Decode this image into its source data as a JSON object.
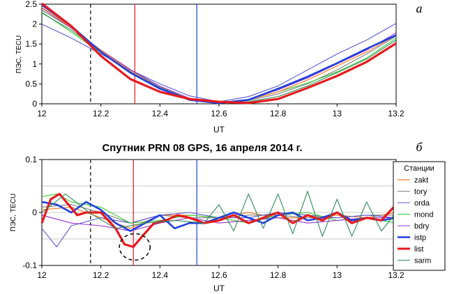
{
  "title": "Спутник PRN 08 GPS, 16 апреля 2014 г.",
  "colors": {
    "zakt": "#ff7f27",
    "tory": "#808080",
    "orda": "#5b5bd6",
    "mond": "#33cc33",
    "bdry": "#9933cc",
    "istp": "#1f3fe0",
    "list": "#e8191c",
    "sarm": "#2e8b57"
  },
  "chart_data": [
    {
      "type": "line",
      "panel_label": "а",
      "xlabel": "UT",
      "ylabel": "ПЭС, TECU",
      "xlim": [
        12,
        13.2
      ],
      "ylim": [
        0,
        2.5
      ],
      "xticks": [
        "12",
        "12.2",
        "12.4",
        "12.6",
        "12.8",
        "13",
        "13.2"
      ],
      "yticks": [
        "0",
        "0.5",
        "1",
        "1.5",
        "2",
        "2.5"
      ],
      "markers": [
        {
          "x": 12.165,
          "style": "dashed",
          "color": "#000000"
        },
        {
          "x": 12.315,
          "style": "solid",
          "color": "#e8191c"
        },
        {
          "x": 12.525,
          "style": "solid",
          "color": "#1f3fe0"
        }
      ],
      "series": [
        {
          "name": "tory",
          "x": [
            12,
            12.1,
            12.2,
            12.3,
            12.4,
            12.5,
            12.6,
            12.7,
            12.8,
            12.9,
            13,
            13.1,
            13.2
          ],
          "values": [
            2.35,
            1.9,
            1.35,
            0.85,
            0.42,
            0.12,
            0.02,
            0.08,
            0.25,
            0.5,
            0.85,
            1.25,
            1.7
          ]
        },
        {
          "name": "orda",
          "x": [
            12,
            12.1,
            12.2,
            12.3,
            12.4,
            12.5,
            12.6,
            12.7,
            12.8,
            12.9,
            13,
            13.1,
            13.2
          ],
          "values": [
            2.0,
            1.65,
            1.25,
            0.85,
            0.5,
            0.2,
            0.05,
            0.18,
            0.45,
            0.85,
            1.25,
            1.6,
            2.02
          ]
        },
        {
          "name": "mond",
          "x": [
            12,
            12.1,
            12.2,
            12.3,
            12.4,
            12.5,
            12.6,
            12.7,
            12.8,
            12.9,
            13,
            13.1,
            13.2
          ],
          "values": [
            2.3,
            1.8,
            1.28,
            0.8,
            0.4,
            0.12,
            0.02,
            0.1,
            0.3,
            0.52,
            0.8,
            1.15,
            1.65
          ]
        },
        {
          "name": "bdry",
          "x": [
            12,
            12.1,
            12.2,
            12.3,
            12.4,
            12.5,
            12.6,
            12.7,
            12.8,
            12.9,
            13,
            13.1,
            13.2
          ],
          "values": [
            2.4,
            1.9,
            1.35,
            0.86,
            0.44,
            0.14,
            0.03,
            0.1,
            0.35,
            0.65,
            1.0,
            1.35,
            1.78
          ]
        },
        {
          "name": "zakt",
          "x": [
            12,
            12.1,
            12.2,
            12.3,
            12.4,
            12.5,
            12.6,
            12.7,
            12.8,
            12.9,
            13,
            13.1,
            13.2
          ],
          "values": [
            2.42,
            1.92,
            1.34,
            0.82,
            0.4,
            0.1,
            0.02,
            0.1,
            0.3,
            0.6,
            0.95,
            1.3,
            1.72
          ]
        },
        {
          "name": "sarm",
          "x": [
            12,
            12.1,
            12.2,
            12.3,
            12.4,
            12.5,
            12.6,
            12.7,
            12.8,
            12.9,
            13,
            13.1,
            13.2
          ],
          "values": [
            2.28,
            1.85,
            1.3,
            0.8,
            0.4,
            0.12,
            0.02,
            0.05,
            0.18,
            0.45,
            0.78,
            1.12,
            1.6
          ]
        },
        {
          "name": "istp",
          "x": [
            12,
            12.1,
            12.2,
            12.3,
            12.4,
            12.5,
            12.6,
            12.7,
            12.8,
            12.9,
            13,
            13.1,
            13.2
          ],
          "values": [
            2.48,
            1.95,
            1.3,
            0.78,
            0.38,
            0.1,
            0.02,
            0.1,
            0.38,
            0.68,
            1.02,
            1.38,
            1.72
          ]
        },
        {
          "name": "list",
          "x": [
            12,
            12.1,
            12.2,
            12.3,
            12.4,
            12.5,
            12.6,
            12.7,
            12.8,
            12.9,
            13,
            13.1,
            13.2
          ],
          "values": [
            2.52,
            1.95,
            1.2,
            0.62,
            0.3,
            0.12,
            0.05,
            0.02,
            0.12,
            0.4,
            0.7,
            1.05,
            1.52
          ]
        }
      ]
    },
    {
      "type": "line",
      "panel_label": "б",
      "title": "Спутник PRN 08 GPS, 16 апреля 2014 г.",
      "xlabel": "UT",
      "ylabel": "ПЭС, TECU",
      "xlim": [
        12,
        13.2
      ],
      "ylim": [
        -0.1,
        0.1
      ],
      "xticks": [
        "12",
        "12.2",
        "12.4",
        "12.6",
        "12.8",
        "13",
        "13.2"
      ],
      "yticks": [
        "-0.1",
        "0",
        "0.1"
      ],
      "grid": true,
      "legend_title": "Станции",
      "legend_position": "right",
      "legend": [
        "zakt",
        "tory",
        "orda",
        "mond",
        "bdry",
        "istp",
        "list",
        "sarm"
      ],
      "markers": [
        {
          "x": 12.165,
          "style": "dashed",
          "color": "#000000"
        },
        {
          "x": 12.31,
          "style": "solid",
          "color": "#e8191c"
        },
        {
          "x": 12.525,
          "style": "solid",
          "color": "#1f3fe0"
        }
      ],
      "annotation": {
        "type": "dashed-circle",
        "x": 12.31,
        "y": -0.065
      },
      "series": [
        {
          "name": "zakt",
          "x": [
            12,
            12.1,
            12.2,
            12.3,
            12.4,
            12.5,
            12.6,
            12.7,
            12.8,
            12.9,
            13,
            13.1,
            13.2
          ],
          "values": [
            0.005,
            0.01,
            -0.01,
            -0.03,
            -0.005,
            -0.005,
            -0.01,
            0.0,
            -0.01,
            -0.01,
            -0.005,
            -0.01,
            0.0
          ]
        },
        {
          "name": "tory",
          "x": [
            12,
            12.1,
            12.2,
            12.3,
            12.4,
            12.5,
            12.6,
            12.7,
            12.8,
            12.9,
            13,
            13.1,
            13.2
          ],
          "values": [
            0.01,
            0.015,
            0.0,
            -0.02,
            -0.005,
            -0.01,
            -0.01,
            -0.005,
            -0.005,
            -0.01,
            -0.01,
            -0.005,
            -0.005
          ]
        },
        {
          "name": "orda",
          "x": [
            12,
            12.05,
            12.1,
            12.2,
            12.3,
            12.4,
            12.5,
            12.6,
            12.7,
            12.8,
            12.9,
            13,
            13.1,
            13.2
          ],
          "values": [
            -0.03,
            -0.065,
            -0.025,
            -0.01,
            -0.02,
            -0.005,
            0.0,
            -0.01,
            -0.01,
            0.0,
            -0.005,
            -0.01,
            -0.005,
            -0.01
          ]
        },
        {
          "name": "mond",
          "x": [
            12,
            12.05,
            12.1,
            12.2,
            12.3,
            12.4,
            12.5,
            12.6,
            12.7,
            12.8,
            12.9,
            13,
            13.1,
            13.2
          ],
          "values": [
            0.03,
            0.035,
            0.02,
            0.01,
            -0.02,
            -0.015,
            -0.005,
            -0.01,
            -0.02,
            -0.005,
            0.0,
            -0.015,
            -0.01,
            -0.02
          ]
        },
        {
          "name": "bdry",
          "x": [
            12,
            12.1,
            12.2,
            12.3,
            12.4,
            12.5,
            12.6,
            12.7,
            12.8,
            12.9,
            13,
            13.1,
            13.2
          ],
          "values": [
            -0.005,
            -0.02,
            -0.025,
            -0.035,
            -0.02,
            -0.01,
            -0.02,
            -0.015,
            -0.01,
            -0.02,
            -0.015,
            -0.01,
            -0.01
          ]
        },
        {
          "name": "istp",
          "x": [
            12,
            12.05,
            12.1,
            12.15,
            12.2,
            12.25,
            12.3,
            12.35,
            12.4,
            12.45,
            12.5,
            12.55,
            12.6,
            12.65,
            12.7,
            12.75,
            12.8,
            12.85,
            12.9,
            12.95,
            13,
            13.05,
            13.1,
            13.15,
            13.2
          ],
          "values": [
            0.02,
            0.015,
            0.0,
            0.02,
            0.005,
            -0.02,
            -0.035,
            -0.02,
            -0.005,
            -0.03,
            -0.02,
            -0.02,
            -0.01,
            0.0,
            -0.01,
            -0.02,
            -0.005,
            0.0,
            -0.015,
            -0.01,
            0.0,
            -0.015,
            -0.01,
            -0.015,
            -0.01
          ]
        },
        {
          "name": "list",
          "x": [
            12,
            12.03,
            12.06,
            12.09,
            12.12,
            12.15,
            12.2,
            12.25,
            12.28,
            12.31,
            12.34,
            12.38,
            12.42,
            12.46,
            12.5,
            12.55,
            12.6,
            12.65,
            12.7,
            12.75,
            12.8,
            12.85,
            12.9,
            12.95,
            13,
            13.05,
            13.1,
            13.15,
            13.2
          ],
          "values": [
            -0.02,
            0.025,
            0.035,
            0.015,
            -0.005,
            0.0,
            0.0,
            -0.03,
            -0.06,
            -0.065,
            -0.045,
            -0.02,
            -0.015,
            -0.005,
            -0.01,
            -0.02,
            -0.015,
            -0.005,
            -0.02,
            -0.01,
            0.0,
            -0.02,
            -0.005,
            -0.015,
            0.0,
            -0.02,
            -0.01,
            -0.015,
            0.015
          ]
        },
        {
          "name": "sarm",
          "x": [
            12,
            12.08,
            12.16,
            12.25,
            12.35,
            12.45,
            12.55,
            12.6,
            12.65,
            12.7,
            12.75,
            12.8,
            12.85,
            12.9,
            12.95,
            13,
            13.05,
            13.1,
            13.15,
            13.2
          ],
          "values": [
            0.0,
            0.035,
            0.0,
            -0.03,
            -0.02,
            -0.015,
            -0.02,
            0.015,
            -0.035,
            0.035,
            -0.03,
            0.035,
            -0.04,
            0.04,
            -0.045,
            0.025,
            -0.045,
            0.02,
            -0.035,
            0.0
          ]
        }
      ]
    }
  ]
}
